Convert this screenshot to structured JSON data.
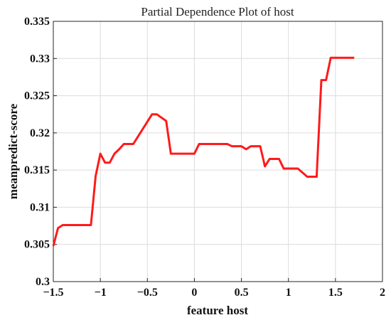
{
  "chart_data": {
    "type": "line",
    "title": "Partial Dependence Plot of host",
    "xlabel": "feature host",
    "ylabel": "meanpredict-score",
    "xlim": [
      -1.5,
      2
    ],
    "ylim": [
      0.3,
      0.335
    ],
    "grid": true,
    "line_color": "#ff1a1a",
    "xticks": [
      -1.5,
      -1,
      -0.5,
      0,
      0.5,
      1,
      1.5,
      2
    ],
    "xtick_labels": [
      "−1.5",
      "−1",
      "−0.5",
      "0",
      "0.5",
      "1",
      "1.5",
      "2"
    ],
    "yticks": [
      0.3,
      0.305,
      0.31,
      0.315,
      0.32,
      0.325,
      0.33,
      0.335
    ],
    "ytick_labels": [
      "0.3",
      "0.305",
      "0.31",
      "0.315",
      "0.32",
      "0.325",
      "0.33",
      "0.335"
    ],
    "series": [
      {
        "x": [
          -1.5,
          -1.45,
          -1.4,
          -1.1,
          -1.05,
          -1.0,
          -0.95,
          -0.9,
          -0.85,
          -0.8,
          -0.75,
          -0.65,
          -0.45,
          -0.4,
          -0.3,
          -0.25,
          -0.2,
          0.0,
          0.05,
          0.1,
          0.35,
          0.4,
          0.5,
          0.55,
          0.6,
          0.65,
          0.7,
          0.75,
          0.8,
          0.85,
          0.9,
          0.95,
          1.0,
          1.1,
          1.2,
          1.25,
          1.3,
          1.35,
          1.4,
          1.45,
          1.5,
          1.6,
          1.7
        ],
        "y": [
          0.3048,
          0.3072,
          0.3076,
          0.3076,
          0.3142,
          0.3172,
          0.316,
          0.316,
          0.3172,
          0.3178,
          0.3185,
          0.3185,
          0.3225,
          0.3225,
          0.3216,
          0.3172,
          0.3172,
          0.3172,
          0.3185,
          0.3185,
          0.3185,
          0.3182,
          0.3182,
          0.3178,
          0.3182,
          0.3182,
          0.3182,
          0.3155,
          0.3165,
          0.3165,
          0.3165,
          0.3152,
          0.3152,
          0.3152,
          0.3141,
          0.3141,
          0.3141,
          0.3271,
          0.3271,
          0.3301,
          0.3301,
          0.3301,
          0.3301
        ]
      }
    ]
  }
}
